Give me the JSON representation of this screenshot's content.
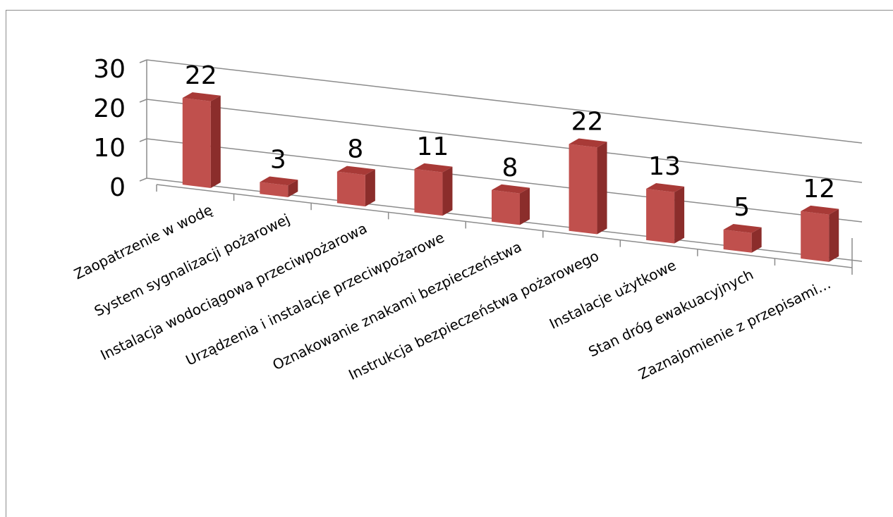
{
  "chart_data": {
    "type": "bar",
    "categories": [
      "Zaopatrzenie w wodę",
      "System sygnalizacji pożarowej",
      "Instalacja wodociągowa przeciwpożarowa",
      "Urządzenia i instalacje przeciwpożarowe",
      "Oznakowanie znakami bezpieczeństwa",
      "Instrukcja bezpieczeństwa pożarowego",
      "Instalacje użytkowe",
      "Stan dróg ewakuacyjnych",
      "Zaznajomienie z przepisami…"
    ],
    "values": [
      22,
      3,
      8,
      11,
      8,
      22,
      13,
      5,
      12
    ],
    "ylim": [
      0,
      30
    ],
    "yticks": [
      "0",
      "10",
      "20",
      "30"
    ],
    "data_labels": [
      "22",
      "3",
      "8",
      "11",
      "8",
      "22",
      "13",
      "5",
      "12"
    ],
    "grid": true,
    "legend": "none",
    "bar_color": "#c0504d",
    "bar_side_color": "#8b2d2b",
    "bar_top_color": "#a83a37"
  }
}
